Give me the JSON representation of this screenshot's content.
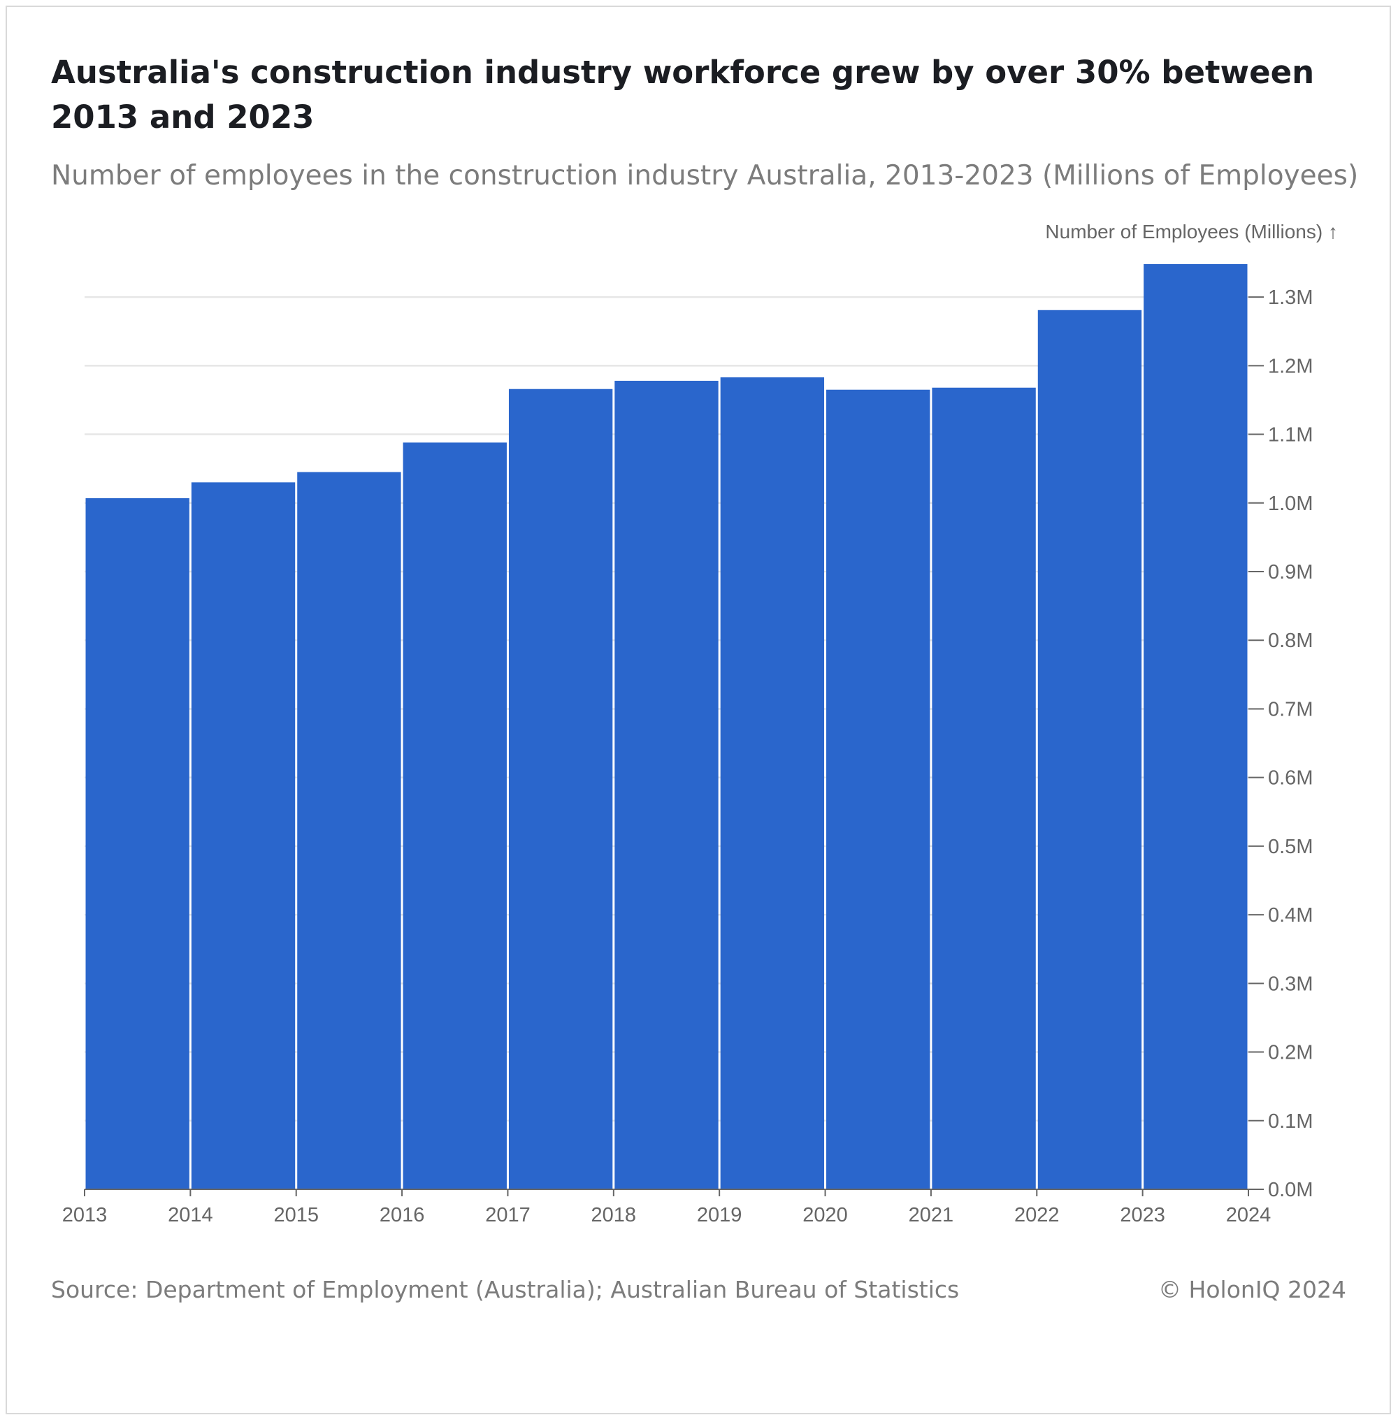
{
  "header": {
    "title": "Australia's construction industry workforce grew by over 30% between 2013 and 2023",
    "subtitle": "Number of employees in the construction industry Australia, 2013-2023 (Millions of Employees)"
  },
  "footer": {
    "source": "Source: Department of Employment (Australia); Australian Bureau of Statistics",
    "copyright": "© HolonIQ 2024"
  },
  "colors": {
    "bar": "#2a66cc",
    "grid": "#e6e6e6",
    "axis": "#666666",
    "text": "#666666"
  },
  "chart_data": {
    "type": "bar",
    "categories": [
      "2013",
      "2014",
      "2015",
      "2016",
      "2017",
      "2018",
      "2019",
      "2020",
      "2021",
      "2022",
      "2023"
    ],
    "x_ticks": [
      "2013",
      "2014",
      "2015",
      "2016",
      "2017",
      "2018",
      "2019",
      "2020",
      "2021",
      "2022",
      "2023",
      "2024"
    ],
    "values": [
      1.007,
      1.03,
      1.045,
      1.088,
      1.166,
      1.178,
      1.183,
      1.165,
      1.168,
      1.281,
      1.348
    ],
    "ylabel": "Number of Employees (Millions) ↑",
    "ylim": [
      0,
      1.35
    ],
    "y_ticks": [
      0.0,
      0.1,
      0.2,
      0.3,
      0.4,
      0.5,
      0.6,
      0.7,
      0.8,
      0.9,
      1.0,
      1.1,
      1.2,
      1.3
    ],
    "y_tick_labels": [
      "0.0M",
      "0.1M",
      "0.2M",
      "0.3M",
      "0.4M",
      "0.5M",
      "0.6M",
      "0.7M",
      "0.8M",
      "0.9M",
      "1.0M",
      "1.1M",
      "1.2M",
      "1.3M"
    ],
    "grid": true,
    "y_axis_position": "right"
  }
}
